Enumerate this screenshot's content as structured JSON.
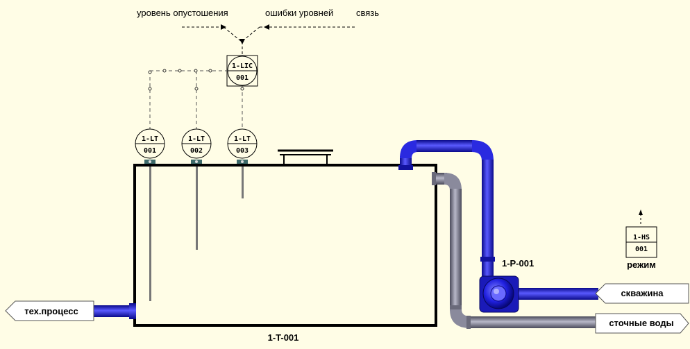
{
  "top_labels": {
    "empty_level": "уровень опустошения",
    "level_errors": "ошибки уровней",
    "connection": "связь"
  },
  "controller": {
    "tag": "1-LIC",
    "number": "001"
  },
  "transmitters": [
    {
      "tag": "1-LT",
      "number": "001"
    },
    {
      "tag": "1-LT",
      "number": "002"
    },
    {
      "tag": "1-LT",
      "number": "003"
    }
  ],
  "tank": {
    "label": "1-T-001"
  },
  "pump": {
    "label": "1-P-001"
  },
  "switch": {
    "tag": "1-HS",
    "number": "001",
    "caption": "режим"
  },
  "connectors": {
    "process": "тех.процесс",
    "well": "скважина",
    "sewage": "сточные воды"
  },
  "colors": {
    "background": "#fffde6",
    "water_pipe": "#1a1ad6",
    "sewage_pipe": "#6d6d80",
    "tank_outline": "#000000"
  }
}
